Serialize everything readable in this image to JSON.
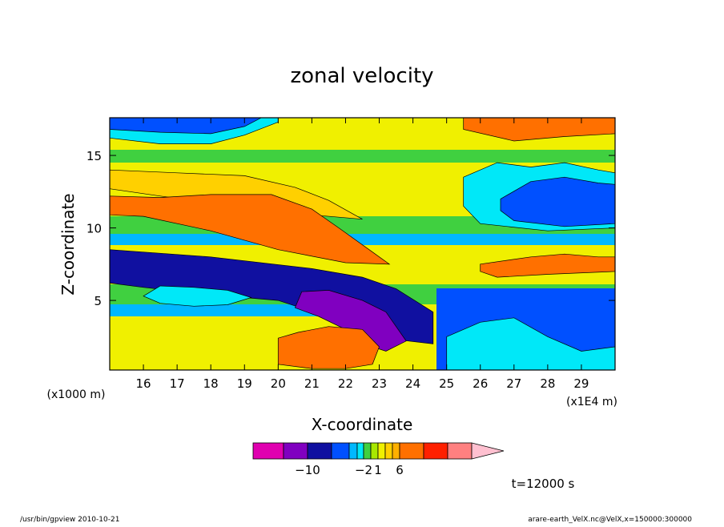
{
  "chart_data": {
    "type": "heatmap",
    "title": "zonal velocity",
    "xlabel": "X-coordinate",
    "ylabel": "Z-coordinate",
    "x_unit_label": "(x1E4 m)",
    "y_unit_label": "(x1000 m)",
    "x_ticks": [
      "16",
      "17",
      "18",
      "19",
      "20",
      "21",
      "22",
      "23",
      "24",
      "25",
      "26",
      "27",
      "28",
      "29"
    ],
    "y_ticks": [
      "5",
      "10",
      "15"
    ],
    "xlim": [
      15,
      30
    ],
    "ylim": [
      0.2,
      17.6
    ],
    "colorbar": {
      "colors": [
        "#e000b0",
        "#8000c0",
        "#1010a0",
        "#0050ff",
        "#00b8ff",
        "#00e8f8",
        "#40d040",
        "#a8e800",
        "#f0f000",
        "#ffd000",
        "#ffb000",
        "#ff7000",
        "#ff2000",
        "#ff8080",
        "#ffc0d0"
      ],
      "labels": [
        {
          "text": "−10",
          "index": 2
        },
        {
          "text": "−2",
          "index": 6
        },
        {
          "text": "1",
          "index": 8
        },
        {
          "text": "6",
          "index": 11
        }
      ]
    },
    "regions": [
      {
        "color": "#00e8f8",
        "x": [
          15.0,
          16.5,
          18.0,
          19.0,
          20.0,
          20.0,
          18.0,
          16.5,
          15.0
        ],
        "z": [
          16.2,
          15.8,
          15.8,
          16.4,
          17.3,
          17.6,
          17.6,
          17.6,
          17.6
        ]
      },
      {
        "color": "#0050ff",
        "x": [
          15.0,
          16.5,
          18.0,
          19.0,
          19.5,
          17.0,
          15.0
        ],
        "z": [
          16.8,
          16.6,
          16.5,
          17.0,
          17.6,
          17.6,
          17.6
        ]
      },
      {
        "color": "#ffd000",
        "x": [
          15.0,
          17.0,
          19.0,
          20.5,
          21.5,
          22.5,
          20.5,
          18.5,
          16.5,
          15.0
        ],
        "z": [
          14.0,
          13.8,
          13.6,
          12.8,
          11.9,
          10.6,
          11.0,
          11.6,
          12.2,
          12.7
        ]
      },
      {
        "color": "#ff7000",
        "x": [
          15.0,
          16.5,
          18.0,
          19.8,
          21.0,
          21.8,
          22.7,
          23.3,
          22.0,
          20.0,
          18.0,
          16.0,
          15.0
        ],
        "z": [
          12.2,
          12.1,
          12.3,
          12.3,
          11.3,
          10.0,
          8.5,
          7.5,
          7.6,
          8.5,
          9.8,
          10.8,
          10.9
        ]
      },
      {
        "color": "#1010a0",
        "x": [
          15.0,
          18.0,
          21.0,
          22.5,
          23.5,
          24.6,
          24.6,
          23.5,
          22.0,
          20.0,
          18.0,
          16.0,
          15.0
        ],
        "z": [
          8.5,
          8.0,
          7.2,
          6.6,
          5.8,
          4.2,
          2.0,
          2.3,
          3.5,
          5.0,
          5.4,
          5.9,
          6.2
        ]
      },
      {
        "color": "#8000c0",
        "x": [
          20.7,
          21.5,
          22.5,
          23.2,
          23.8,
          23.2,
          22.8,
          22.0,
          21.2,
          20.5
        ],
        "z": [
          5.6,
          5.7,
          5.0,
          4.2,
          2.2,
          1.5,
          1.8,
          3.0,
          3.9,
          4.5
        ]
      },
      {
        "color": "#ff7000",
        "x": [
          20.0,
          20.6,
          21.5,
          22.5,
          23.0,
          22.8,
          22.0,
          21.0,
          20.0
        ],
        "z": [
          2.4,
          2.8,
          3.2,
          3.0,
          1.8,
          0.6,
          0.3,
          0.3,
          0.6
        ]
      },
      {
        "color": "#00e8f8",
        "x": [
          25.0,
          26.0,
          27.0,
          28.0,
          29.0,
          30.0,
          30.0,
          27.0,
          25.0
        ],
        "z": [
          2.5,
          3.5,
          3.8,
          2.5,
          1.5,
          1.8,
          0.2,
          0.2,
          0.2
        ]
      },
      {
        "color": "#00e8f8",
        "x": [
          25.5,
          26.5,
          27.5,
          28.5,
          29.5,
          30.0,
          30.0,
          28.0,
          26.0,
          25.5
        ],
        "z": [
          13.5,
          14.5,
          14.2,
          14.5,
          14.0,
          13.8,
          10.0,
          9.8,
          10.3,
          11.5
        ]
      },
      {
        "color": "#0050ff",
        "x": [
          26.6,
          27.5,
          28.5,
          29.5,
          30.0,
          30.0,
          28.5,
          27.0,
          26.6
        ],
        "z": [
          12.0,
          13.2,
          13.5,
          13.1,
          13.0,
          10.3,
          10.1,
          10.5,
          11.2
        ]
      },
      {
        "color": "#ff7000",
        "x": [
          26.0,
          27.5,
          28.5,
          29.5,
          30.0,
          30.0,
          28.0,
          26.5,
          26.0
        ],
        "z": [
          7.5,
          8.0,
          8.2,
          8.0,
          8.0,
          7.0,
          6.8,
          6.6,
          7.0
        ]
      },
      {
        "color": "#ff7000",
        "x": [
          25.5,
          26.5,
          27.5,
          28.5,
          29.5,
          30.0,
          30.0,
          28.5,
          27.0,
          25.5
        ],
        "z": [
          17.6,
          17.6,
          17.6,
          17.6,
          17.6,
          17.6,
          16.5,
          16.3,
          16.0,
          16.8
        ]
      },
      {
        "color": "#00e8f8",
        "x": [
          16.5,
          17.5,
          18.5,
          19.2,
          18.5,
          17.5,
          16.5,
          16.0
        ],
        "z": [
          6.0,
          5.9,
          5.7,
          5.2,
          4.7,
          4.6,
          4.8,
          5.3
        ]
      }
    ],
    "time_label": "t=12000 s"
  },
  "footer": {
    "left": "/usr/bin/gpview  2010-10-21",
    "right": "arare-earth_VelX.nc@VelX,x=150000:300000"
  }
}
